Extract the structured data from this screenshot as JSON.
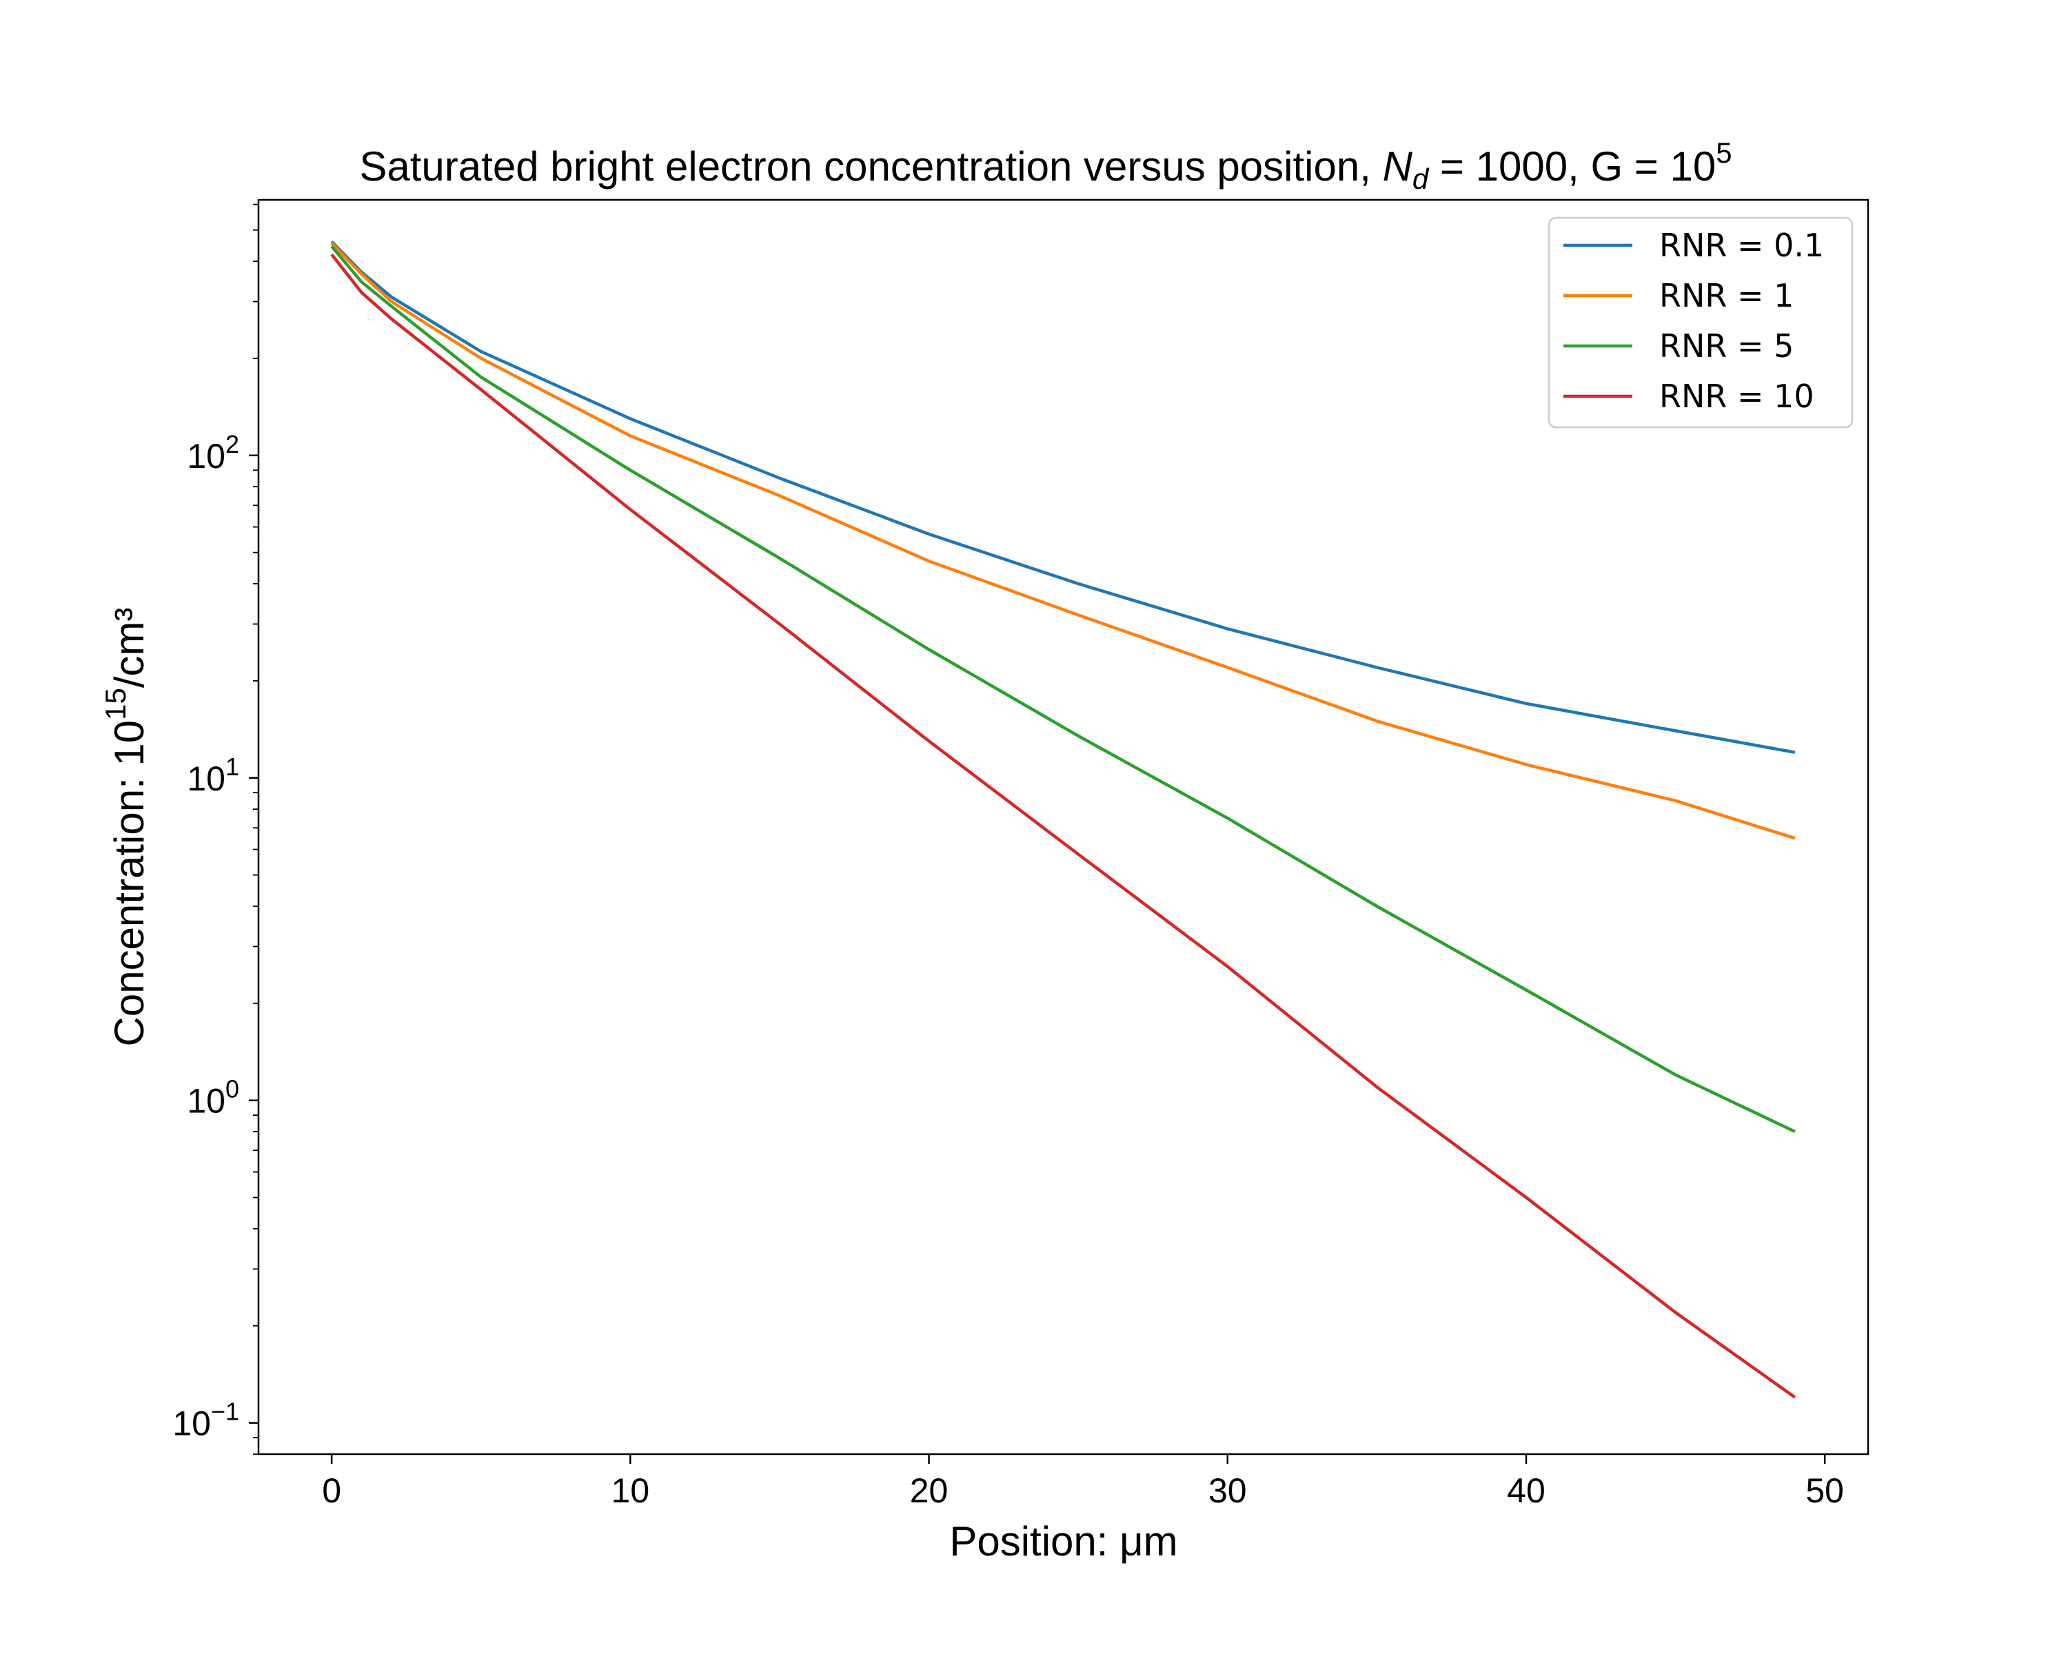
{
  "chart_data": {
    "type": "line",
    "title_parts": {
      "prefix": "Saturated bright electron concentration versus position, ",
      "nd_symbol": "N",
      "nd_subscript": "d",
      "nd_value": " = 1000, G = 10",
      "g_exponent": "5"
    },
    "xlabel": "Position: μm",
    "ylabel_parts": {
      "prefix": "Concentration: 10",
      "exponent": "15",
      "suffix": "/cm³"
    },
    "y_scale": "log",
    "xlim": [
      -2.45,
      51.45
    ],
    "ylim": [
      0.08,
      620
    ],
    "x_ticks": [
      {
        "value": 0,
        "label": "0"
      },
      {
        "value": 10,
        "label": "10"
      },
      {
        "value": 20,
        "label": "20"
      },
      {
        "value": 30,
        "label": "30"
      },
      {
        "value": 40,
        "label": "40"
      },
      {
        "value": 50,
        "label": "50"
      }
    ],
    "y_ticks": [
      {
        "value": 0.1,
        "base": "10",
        "exp": "−1"
      },
      {
        "value": 1,
        "base": "10",
        "exp": "0"
      },
      {
        "value": 10,
        "base": "10",
        "exp": "1"
      },
      {
        "value": 100,
        "base": "10",
        "exp": "2"
      }
    ],
    "legend_position": "upper right",
    "grid": false,
    "series": [
      {
        "name": "RNR = 0.1",
        "color": "#1f77b4",
        "x": [
          0,
          1,
          2,
          5,
          10,
          15,
          20,
          25,
          30,
          35,
          40,
          45,
          49
        ],
        "y": [
          460,
          370,
          310,
          210,
          130,
          85,
          57,
          40,
          29,
          22,
          17,
          14,
          12
        ]
      },
      {
        "name": "RNR = 1",
        "color": "#ff7f0e",
        "x": [
          0,
          1,
          2,
          5,
          10,
          15,
          20,
          25,
          30,
          35,
          40,
          45,
          49
        ],
        "y": [
          455,
          365,
          300,
          200,
          115,
          75,
          47,
          32,
          22,
          15,
          11,
          8.5,
          6.5
        ]
      },
      {
        "name": "RNR = 5",
        "color": "#2ca02c",
        "x": [
          0,
          1,
          2,
          5,
          10,
          15,
          20,
          25,
          30,
          35,
          40,
          45,
          49
        ],
        "y": [
          445,
          345,
          290,
          175,
          90,
          48,
          25,
          13.5,
          7.5,
          4,
          2.2,
          1.2,
          0.8
        ]
      },
      {
        "name": "RNR = 10",
        "color": "#d62728",
        "x": [
          0,
          1,
          2,
          5,
          10,
          15,
          20,
          25,
          30,
          35,
          40,
          45,
          49
        ],
        "y": [
          420,
          320,
          265,
          160,
          68,
          30,
          13,
          5.8,
          2.6,
          1.1,
          0.5,
          0.22,
          0.12
        ]
      }
    ]
  }
}
